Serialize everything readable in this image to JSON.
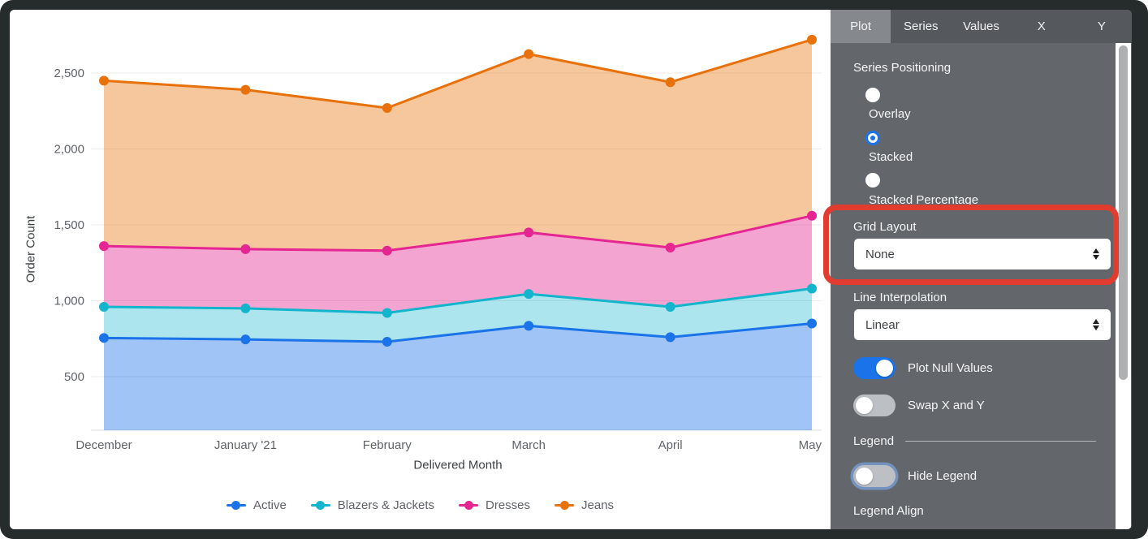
{
  "chart_data": {
    "type": "area",
    "stacking": "stacked",
    "values_mode": "rendered cumulative line positions (stacked tops)",
    "xlabel": "Delivered Month",
    "ylabel": "Order Count",
    "categories": [
      "December",
      "January '21",
      "February",
      "March",
      "April",
      "May"
    ],
    "yticks": [
      500,
      1000,
      1500,
      2000,
      2500
    ],
    "ylim": [
      150,
      2750
    ],
    "grid": "horizontal",
    "legend_position": "bottom",
    "series": [
      {
        "name": "Active",
        "color": "#1A73E8",
        "fill_alpha": 0.42,
        "values": [
          755,
          745,
          730,
          835,
          760,
          850
        ]
      },
      {
        "name": "Blazers & Jackets",
        "color": "#12B5CB",
        "fill_alpha": 0.35,
        "values": [
          960,
          950,
          920,
          1045,
          960,
          1080
        ]
      },
      {
        "name": "Dresses",
        "color": "#E52592",
        "fill_alpha": 0.42,
        "values": [
          1360,
          1340,
          1330,
          1450,
          1350,
          1560
        ]
      },
      {
        "name": "Jeans",
        "color": "#E8710A",
        "fill_alpha": 0.4,
        "values": [
          2450,
          2390,
          2270,
          2625,
          2440,
          2720
        ]
      }
    ]
  },
  "panel": {
    "tabs": [
      {
        "label": "Plot",
        "active": true
      },
      {
        "label": "Series",
        "active": false
      },
      {
        "label": "Values",
        "active": false
      },
      {
        "label": "X",
        "active": false
      },
      {
        "label": "Y",
        "active": false
      }
    ],
    "series_positioning": {
      "label": "Series Positioning",
      "options": [
        {
          "label": "Overlay",
          "selected": false
        },
        {
          "label": "Stacked",
          "selected": true
        },
        {
          "label": "Stacked Percentage",
          "selected": false
        }
      ]
    },
    "grid_layout": {
      "label": "Grid Layout",
      "value": "None"
    },
    "line_interpolation": {
      "label": "Line Interpolation",
      "value": "Linear"
    },
    "toggles": {
      "plot_null_values": {
        "label": "Plot Null Values",
        "on": true
      },
      "swap_x_y": {
        "label": "Swap X and Y",
        "on": false
      },
      "hide_legend": {
        "label": "Hide Legend",
        "on": false
      }
    },
    "legend_section_label": "Legend",
    "legend_align_label": "Legend Align"
  },
  "annotation": {
    "type": "highlight-box",
    "target": "Grid Layout",
    "color": "#E23C30"
  }
}
